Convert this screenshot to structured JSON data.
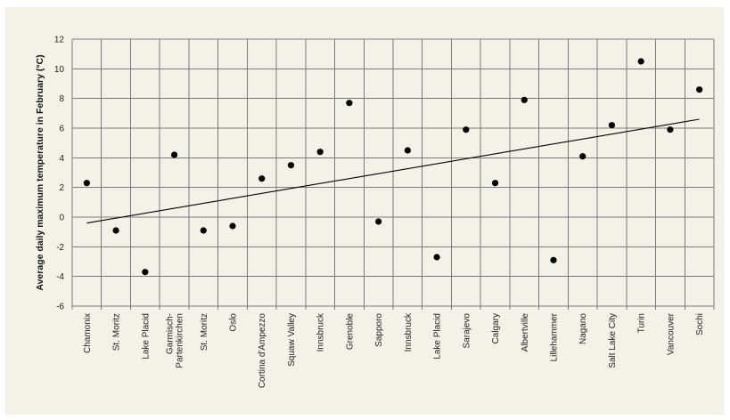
{
  "chart_data": {
    "type": "scatter",
    "title": "",
    "xlabel": "",
    "ylabel": "Average daily maximum temperature in February (°C)",
    "ylim": [
      -6,
      12
    ],
    "yticks": [
      -6,
      -4,
      -2,
      0,
      2,
      4,
      6,
      8,
      10,
      12
    ],
    "grid": true,
    "colors": {
      "background": "#f4f1e6",
      "gridline": "#7a7a7a",
      "point": "#000000",
      "trendline": "#000000"
    },
    "categories": [
      "Chamonix",
      "St. Moritz",
      "Lake Placid",
      "Garmisch-\nPartenkirchen",
      "St. Moritz",
      "Oslo",
      "Cortina d'Ampezzo",
      "Squaw Valley",
      "Innsbruck",
      "Grenoble",
      "Sapporo",
      "Innsbruck",
      "Lake Placid",
      "Sarajevo",
      "Calgary",
      "Albertville",
      "Lillehammer",
      "Nagano",
      "Salt Lake City",
      "Turin",
      "Vancouver",
      "Sochi"
    ],
    "series": [
      {
        "values": [
          2.3,
          -0.9,
          -3.7,
          4.2,
          -0.9,
          -0.6,
          2.6,
          3.5,
          4.4,
          7.7,
          -0.3,
          4.5,
          -2.7,
          5.9,
          2.3,
          7.9,
          -2.9,
          4.1,
          6.2,
          10.5,
          5.9,
          8.6
        ]
      }
    ],
    "trendline": {
      "start": -0.4,
      "end": 6.6
    }
  }
}
